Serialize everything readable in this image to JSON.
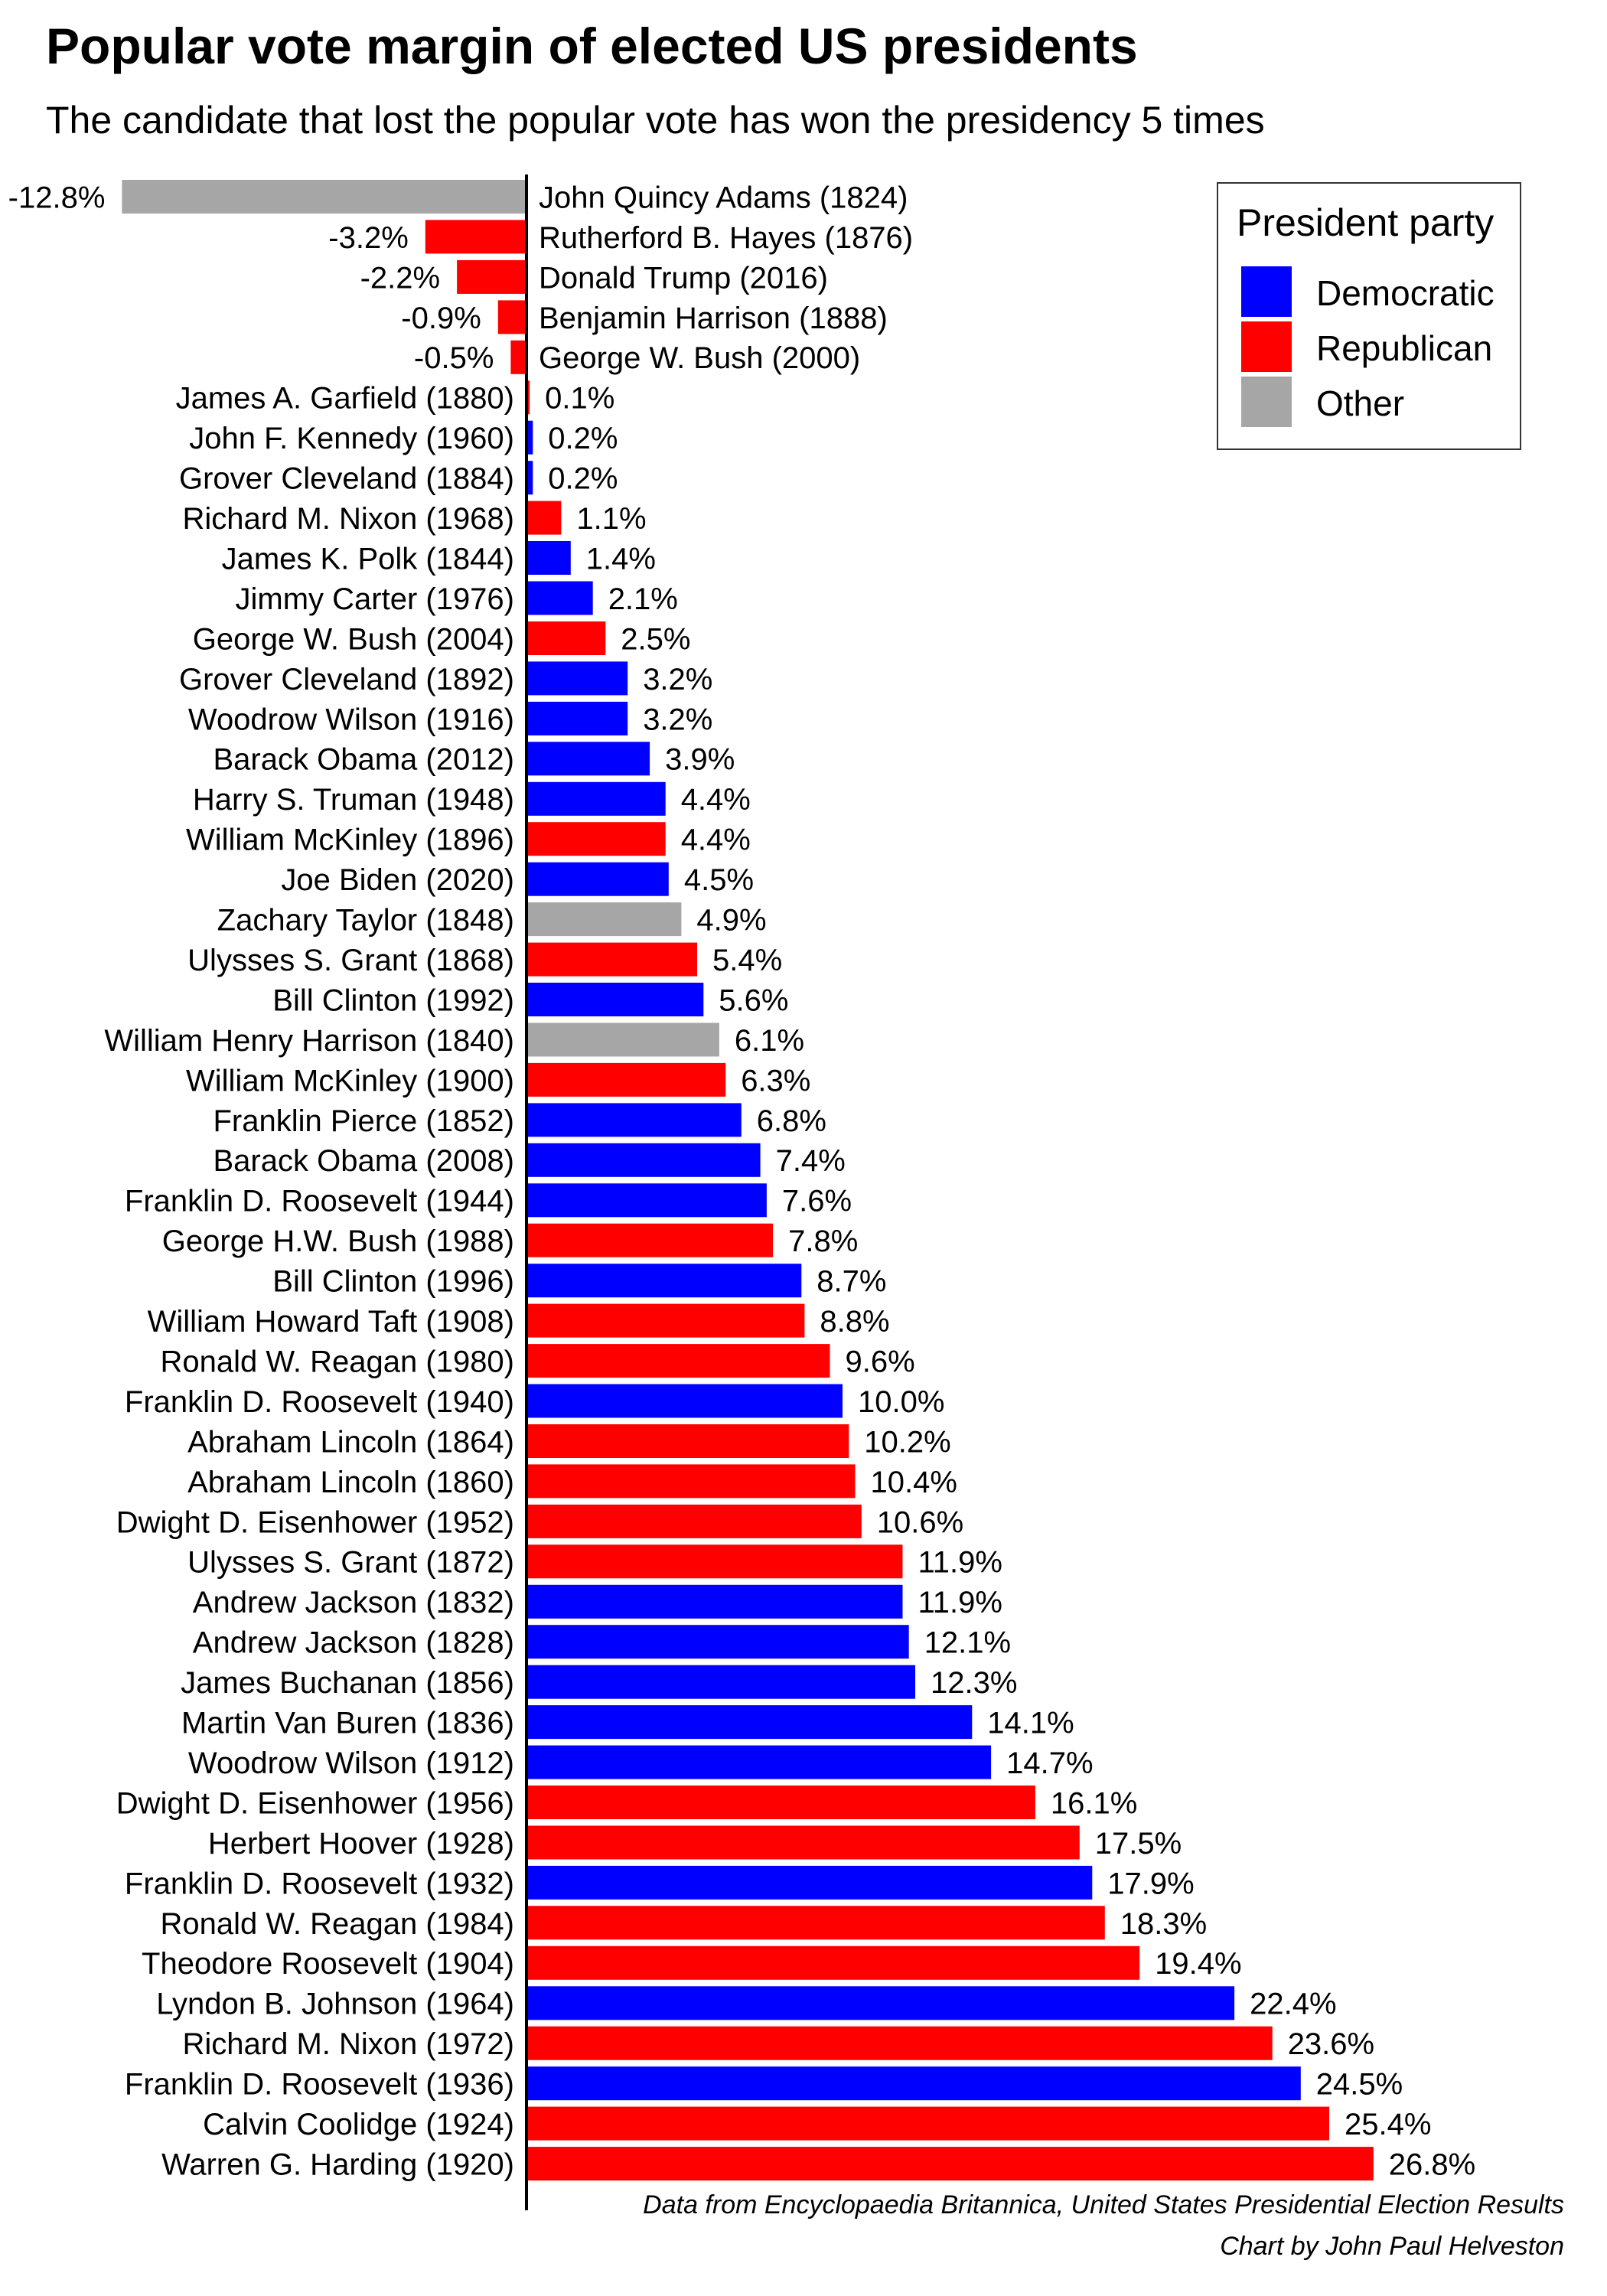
{
  "title": "Popular vote margin of elected US presidents",
  "subtitle": "The candidate that lost the popular vote has won the presidency 5 times",
  "colors": {
    "Democratic": "#0000ff",
    "Republican": "#ff0000",
    "Other": "#a6a6a6"
  },
  "legend": {
    "title": "President party",
    "items": [
      {
        "label": "Democratic",
        "color": "#0000ff"
      },
      {
        "label": "Republican",
        "color": "#ff0000"
      },
      {
        "label": "Other",
        "color": "#a6a6a6"
      }
    ]
  },
  "caption": {
    "line1": "Data from Encyclopaedia Britannica, United States Presidential Election Results",
    "line2": "Chart by John Paul Helveston"
  },
  "chart_data": {
    "type": "bar",
    "orientation": "horizontal",
    "title": "Popular vote margin of elected US presidents",
    "xlabel": "",
    "ylabel": "",
    "xlim": [
      -12.8,
      26.8
    ],
    "grid": false,
    "legend_position": "top-right",
    "bars": [
      {
        "label": "John Quincy Adams (1824)",
        "value": -12.8,
        "value_label": "-12.8%",
        "party": "Other"
      },
      {
        "label": "Rutherford B. Hayes (1876)",
        "value": -3.2,
        "value_label": "-3.2%",
        "party": "Republican"
      },
      {
        "label": "Donald Trump (2016)",
        "value": -2.2,
        "value_label": "-2.2%",
        "party": "Republican"
      },
      {
        "label": "Benjamin Harrison (1888)",
        "value": -0.9,
        "value_label": "-0.9%",
        "party": "Republican"
      },
      {
        "label": "George W. Bush (2000)",
        "value": -0.5,
        "value_label": "-0.5%",
        "party": "Republican"
      },
      {
        "label": "James A. Garfield (1880)",
        "value": 0.1,
        "value_label": "0.1%",
        "party": "Republican"
      },
      {
        "label": "John F. Kennedy (1960)",
        "value": 0.2,
        "value_label": "0.2%",
        "party": "Democratic"
      },
      {
        "label": "Grover Cleveland (1884)",
        "value": 0.2,
        "value_label": "0.2%",
        "party": "Democratic"
      },
      {
        "label": "Richard M. Nixon (1968)",
        "value": 1.1,
        "value_label": "1.1%",
        "party": "Republican"
      },
      {
        "label": "James K. Polk (1844)",
        "value": 1.4,
        "value_label": "1.4%",
        "party": "Democratic"
      },
      {
        "label": "Jimmy Carter (1976)",
        "value": 2.1,
        "value_label": "2.1%",
        "party": "Democratic"
      },
      {
        "label": "George W. Bush (2004)",
        "value": 2.5,
        "value_label": "2.5%",
        "party": "Republican"
      },
      {
        "label": "Grover Cleveland (1892)",
        "value": 3.2,
        "value_label": "3.2%",
        "party": "Democratic"
      },
      {
        "label": "Woodrow Wilson (1916)",
        "value": 3.2,
        "value_label": "3.2%",
        "party": "Democratic"
      },
      {
        "label": "Barack Obama (2012)",
        "value": 3.9,
        "value_label": "3.9%",
        "party": "Democratic"
      },
      {
        "label": "Harry S. Truman (1948)",
        "value": 4.4,
        "value_label": "4.4%",
        "party": "Democratic"
      },
      {
        "label": "William McKinley (1896)",
        "value": 4.4,
        "value_label": "4.4%",
        "party": "Republican"
      },
      {
        "label": "Joe Biden (2020)",
        "value": 4.5,
        "value_label": "4.5%",
        "party": "Democratic"
      },
      {
        "label": "Zachary Taylor (1848)",
        "value": 4.9,
        "value_label": "4.9%",
        "party": "Other"
      },
      {
        "label": "Ulysses S. Grant (1868)",
        "value": 5.4,
        "value_label": "5.4%",
        "party": "Republican"
      },
      {
        "label": "Bill Clinton (1992)",
        "value": 5.6,
        "value_label": "5.6%",
        "party": "Democratic"
      },
      {
        "label": "William Henry Harrison (1840)",
        "value": 6.1,
        "value_label": "6.1%",
        "party": "Other"
      },
      {
        "label": "William McKinley (1900)",
        "value": 6.3,
        "value_label": "6.3%",
        "party": "Republican"
      },
      {
        "label": "Franklin Pierce (1852)",
        "value": 6.8,
        "value_label": "6.8%",
        "party": "Democratic"
      },
      {
        "label": "Barack Obama (2008)",
        "value": 7.4,
        "value_label": "7.4%",
        "party": "Democratic"
      },
      {
        "label": "Franklin D. Roosevelt (1944)",
        "value": 7.6,
        "value_label": "7.6%",
        "party": "Democratic"
      },
      {
        "label": "George H.W. Bush (1988)",
        "value": 7.8,
        "value_label": "7.8%",
        "party": "Republican"
      },
      {
        "label": "Bill Clinton (1996)",
        "value": 8.7,
        "value_label": "8.7%",
        "party": "Democratic"
      },
      {
        "label": "William Howard Taft (1908)",
        "value": 8.8,
        "value_label": "8.8%",
        "party": "Republican"
      },
      {
        "label": "Ronald W. Reagan (1980)",
        "value": 9.6,
        "value_label": "9.6%",
        "party": "Republican"
      },
      {
        "label": "Franklin D. Roosevelt (1940)",
        "value": 10.0,
        "value_label": "10.0%",
        "party": "Democratic"
      },
      {
        "label": "Abraham Lincoln (1864)",
        "value": 10.2,
        "value_label": "10.2%",
        "party": "Republican"
      },
      {
        "label": "Abraham Lincoln (1860)",
        "value": 10.4,
        "value_label": "10.4%",
        "party": "Republican"
      },
      {
        "label": "Dwight D. Eisenhower (1952)",
        "value": 10.6,
        "value_label": "10.6%",
        "party": "Republican"
      },
      {
        "label": "Ulysses S. Grant (1872)",
        "value": 11.9,
        "value_label": "11.9%",
        "party": "Republican"
      },
      {
        "label": "Andrew Jackson (1832)",
        "value": 11.9,
        "value_label": "11.9%",
        "party": "Democratic"
      },
      {
        "label": "Andrew Jackson (1828)",
        "value": 12.1,
        "value_label": "12.1%",
        "party": "Democratic"
      },
      {
        "label": "James Buchanan (1856)",
        "value": 12.3,
        "value_label": "12.3%",
        "party": "Democratic"
      },
      {
        "label": "Martin Van Buren (1836)",
        "value": 14.1,
        "value_label": "14.1%",
        "party": "Democratic"
      },
      {
        "label": "Woodrow Wilson (1912)",
        "value": 14.7,
        "value_label": "14.7%",
        "party": "Democratic"
      },
      {
        "label": "Dwight D. Eisenhower (1956)",
        "value": 16.1,
        "value_label": "16.1%",
        "party": "Republican"
      },
      {
        "label": "Herbert Hoover (1928)",
        "value": 17.5,
        "value_label": "17.5%",
        "party": "Republican"
      },
      {
        "label": "Franklin D. Roosevelt (1932)",
        "value": 17.9,
        "value_label": "17.9%",
        "party": "Democratic"
      },
      {
        "label": "Ronald W. Reagan (1984)",
        "value": 18.3,
        "value_label": "18.3%",
        "party": "Republican"
      },
      {
        "label": "Theodore Roosevelt (1904)",
        "value": 19.4,
        "value_label": "19.4%",
        "party": "Republican"
      },
      {
        "label": "Lyndon B. Johnson (1964)",
        "value": 22.4,
        "value_label": "22.4%",
        "party": "Democratic"
      },
      {
        "label": "Richard M. Nixon (1972)",
        "value": 23.6,
        "value_label": "23.6%",
        "party": "Republican"
      },
      {
        "label": "Franklin D. Roosevelt (1936)",
        "value": 24.5,
        "value_label": "24.5%",
        "party": "Democratic"
      },
      {
        "label": "Calvin Coolidge (1924)",
        "value": 25.4,
        "value_label": "25.4%",
        "party": "Republican"
      },
      {
        "label": "Warren G. Harding (1920)",
        "value": 26.8,
        "value_label": "26.8%",
        "party": "Republican"
      }
    ]
  }
}
